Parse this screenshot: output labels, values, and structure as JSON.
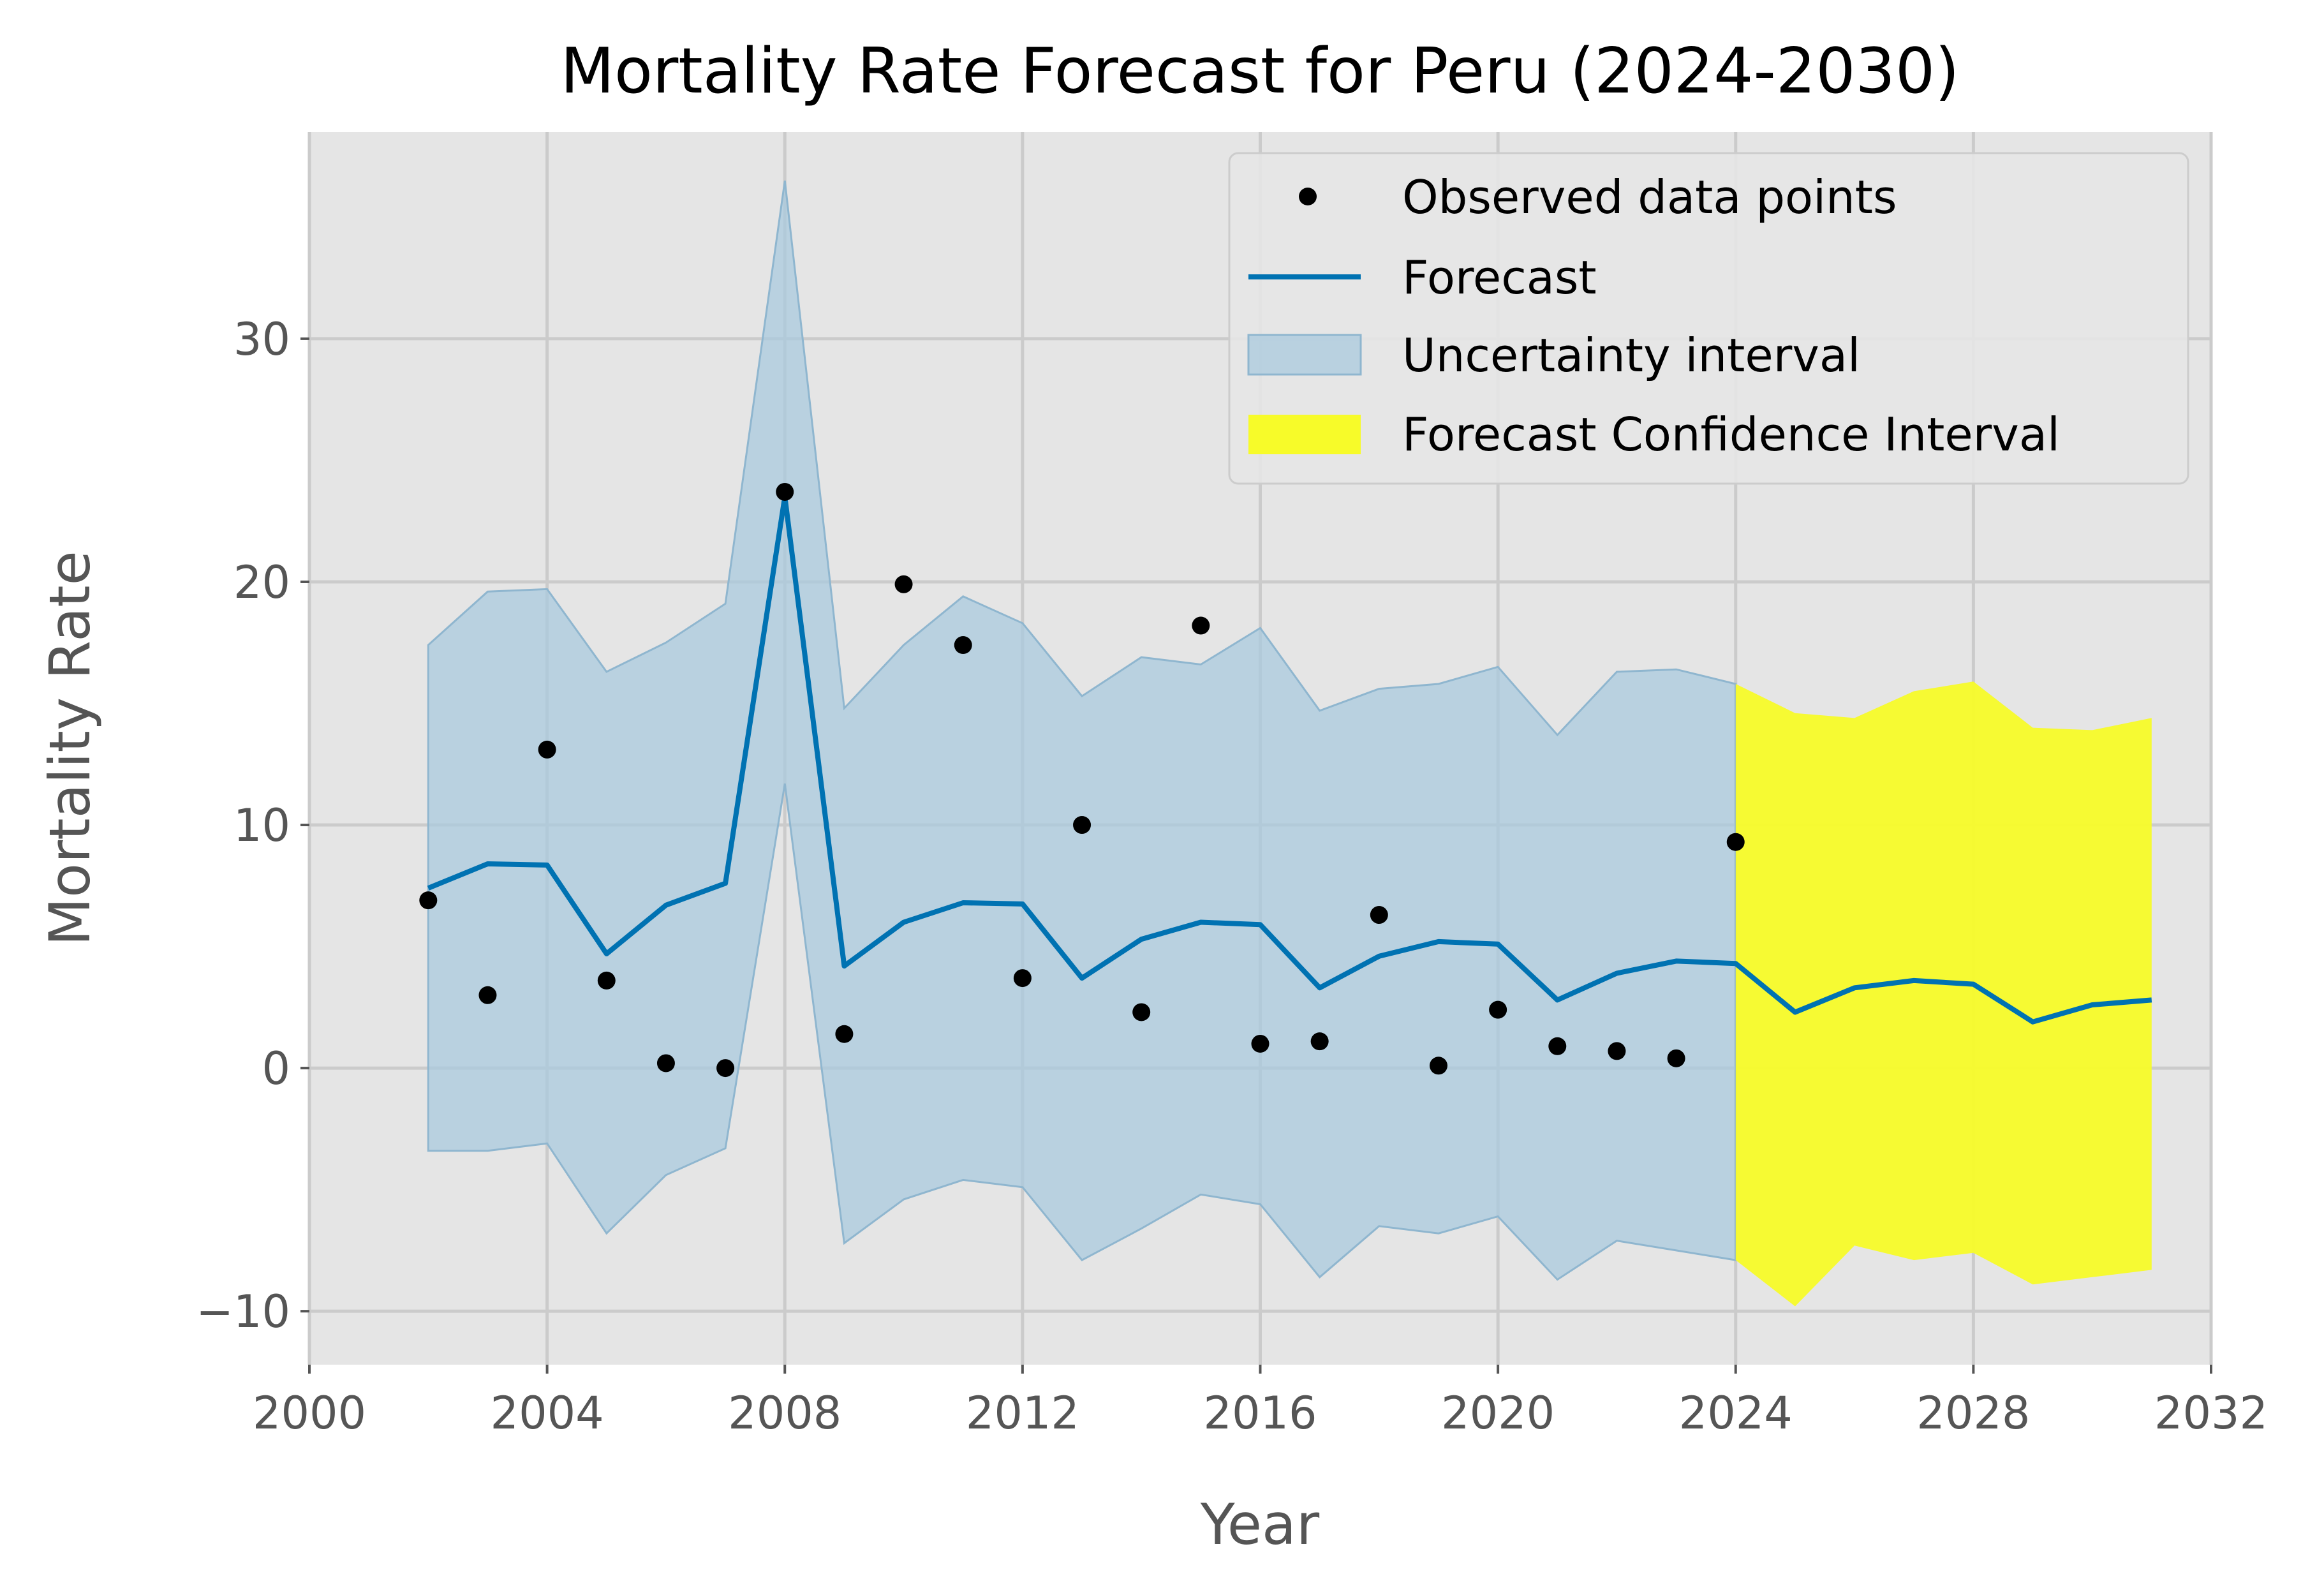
{
  "chart_data": {
    "type": "line",
    "title": "Mortality Rate Forecast for Peru (2024-2030)",
    "xlabel": "Year",
    "ylabel": "Mortality Rate",
    "xlim": [
      2000,
      2032
    ],
    "ylim": [
      -12.2,
      38.5
    ],
    "xticks": [
      2000,
      2004,
      2008,
      2012,
      2016,
      2020,
      2024,
      2028,
      2032
    ],
    "xtick_labels": [
      "2000",
      "2004",
      "2008",
      "2012",
      "2016",
      "2020",
      "2024",
      "2028",
      "2032"
    ],
    "yticks": [
      -10,
      0,
      10,
      20,
      30
    ],
    "ytick_labels": [
      "−10",
      "0",
      "10",
      "20",
      "30"
    ],
    "grid": true,
    "legend_position": "top-right",
    "colors": {
      "background": "#e5e5e5",
      "grid": "#cbcbcb",
      "observed": "#000000",
      "forecast": "#0072b2",
      "uncertainty": "#a9c9de",
      "confidence": "#f7fb29"
    },
    "legend": [
      {
        "label": "Observed data points",
        "marker": "dot"
      },
      {
        "label": "Forecast",
        "marker": "line"
      },
      {
        "label": "Uncertainty interval",
        "marker": "uncertainty-patch"
      },
      {
        "label": "Forecast Confidence Interval",
        "marker": "confidence-patch"
      }
    ],
    "observed": {
      "name": "Observed data points",
      "x": [
        2002,
        2003,
        2004,
        2005,
        2006,
        2007,
        2008,
        2009,
        2010,
        2011,
        2012,
        2013,
        2014,
        2015,
        2016,
        2017,
        2018,
        2019,
        2020,
        2021,
        2022,
        2023,
        2024
      ],
      "y": [
        6.9,
        3.0,
        13.1,
        3.6,
        0.2,
        0.0,
        23.7,
        1.4,
        19.9,
        17.4,
        3.7,
        10.0,
        2.3,
        18.2,
        1.0,
        1.1,
        6.3,
        0.1,
        2.4,
        0.9,
        0.7,
        0.4,
        9.3
      ]
    },
    "forecast": {
      "name": "Forecast",
      "x": [
        2002,
        2003,
        2004,
        2005,
        2006,
        2007,
        2008,
        2009,
        2010,
        2011,
        2012,
        2013,
        2014,
        2015,
        2016,
        2017,
        2018,
        2019,
        2020,
        2021,
        2022,
        2023,
        2024,
        2025,
        2026,
        2027,
        2028,
        2029,
        2030,
        2031
      ],
      "y": [
        7.4,
        8.4,
        8.35,
        4.7,
        6.7,
        7.6,
        23.5,
        4.2,
        6.0,
        6.8,
        6.75,
        3.7,
        5.3,
        6.0,
        5.9,
        3.3,
        4.6,
        5.2,
        5.1,
        2.8,
        3.9,
        4.4,
        4.3,
        2.3,
        3.3,
        3.6,
        3.45,
        1.9,
        2.6,
        2.8
      ]
    },
    "uncertainty_interval": {
      "name": "Uncertainty interval",
      "x": [
        2002,
        2003,
        2004,
        2005,
        2006,
        2007,
        2008,
        2009,
        2010,
        2011,
        2012,
        2013,
        2014,
        2015,
        2016,
        2017,
        2018,
        2019,
        2020,
        2021,
        2022,
        2023,
        2024
      ],
      "upper": [
        17.4,
        19.6,
        19.7,
        16.3,
        17.5,
        19.1,
        36.5,
        14.8,
        17.4,
        19.4,
        18.3,
        15.3,
        16.9,
        16.6,
        18.1,
        14.7,
        15.6,
        15.8,
        16.5,
        13.7,
        16.3,
        16.4,
        15.8
      ],
      "lower": [
        -3.4,
        -3.4,
        -3.1,
        -6.8,
        -4.4,
        -3.3,
        11.7,
        -7.2,
        -5.4,
        -4.6,
        -4.9,
        -7.9,
        -6.6,
        -5.2,
        -5.6,
        -8.6,
        -6.5,
        -6.8,
        -6.1,
        -8.7,
        -7.1,
        -7.5,
        -7.9
      ]
    },
    "forecast_confidence_interval": {
      "name": "Forecast Confidence Interval",
      "x": [
        2024,
        2025,
        2026,
        2027,
        2028,
        2029,
        2030,
        2031
      ],
      "upper": [
        15.8,
        14.6,
        14.4,
        15.5,
        15.9,
        14.0,
        13.9,
        14.4
      ],
      "lower": [
        -7.9,
        -9.8,
        -7.3,
        -7.9,
        -7.6,
        -8.9,
        -8.6,
        -8.3
      ]
    }
  }
}
